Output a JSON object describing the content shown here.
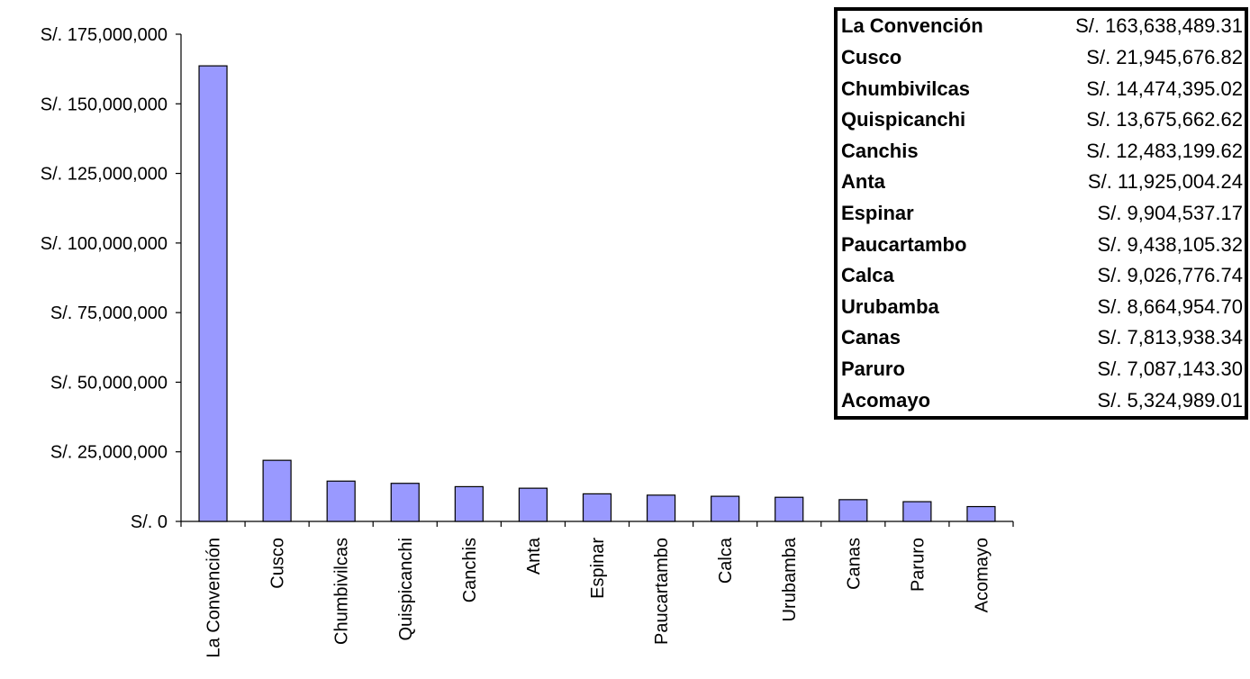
{
  "chart_data": {
    "type": "bar",
    "categories": [
      "La Convención",
      "Cusco",
      "Chumbivilcas",
      "Quispicanchi",
      "Canchis",
      "Anta",
      "Espinar",
      "Paucartambo",
      "Calca",
      "Urubamba",
      "Canas",
      "Paruro",
      "Acomayo"
    ],
    "values": [
      163638489.31,
      21945676.82,
      14474395.02,
      13675662.62,
      12483199.62,
      11925004.24,
      9904537.17,
      9438105.32,
      9026776.74,
      8664954.7,
      7813938.34,
      7087143.3,
      5324989.01
    ],
    "ylim": [
      0,
      175000000
    ],
    "yticks": [
      0,
      25000000,
      50000000,
      75000000,
      100000000,
      125000000,
      150000000,
      175000000
    ],
    "ytick_labels": [
      "S/. 0",
      "S/. 25,000,000",
      "S/. 50,000,000",
      "S/. 75,000,000",
      "S/. 100,000,000",
      "S/. 125,000,000",
      "S/. 150,000,000",
      "S/. 175,000,000"
    ],
    "bar_color": "#9999ff",
    "grid": false,
    "title": "",
    "xlabel": "",
    "ylabel": "",
    "table_placement": "top-right",
    "table": [
      {
        "name": "La Convención",
        "value": "S/. 163,638,489.31"
      },
      {
        "name": "Cusco",
        "value": "S/. 21,945,676.82"
      },
      {
        "name": "Chumbivilcas",
        "value": "S/. 14,474,395.02"
      },
      {
        "name": "Quispicanchi",
        "value": "S/. 13,675,662.62"
      },
      {
        "name": "Canchis",
        "value": "S/. 12,483,199.62"
      },
      {
        "name": "Anta",
        "value": "S/. 11,925,004.24"
      },
      {
        "name": "Espinar",
        "value": "S/. 9,904,537.17"
      },
      {
        "name": "Paucartambo",
        "value": "S/. 9,438,105.32"
      },
      {
        "name": "Calca",
        "value": "S/. 9,026,776.74"
      },
      {
        "name": "Urubamba",
        "value": "S/. 8,664,954.70"
      },
      {
        "name": "Canas",
        "value": "S/. 7,813,938.34"
      },
      {
        "name": "Paruro",
        "value": "S/. 7,087,143.30"
      },
      {
        "name": "Acomayo",
        "value": "S/. 5,324,989.01"
      }
    ]
  }
}
